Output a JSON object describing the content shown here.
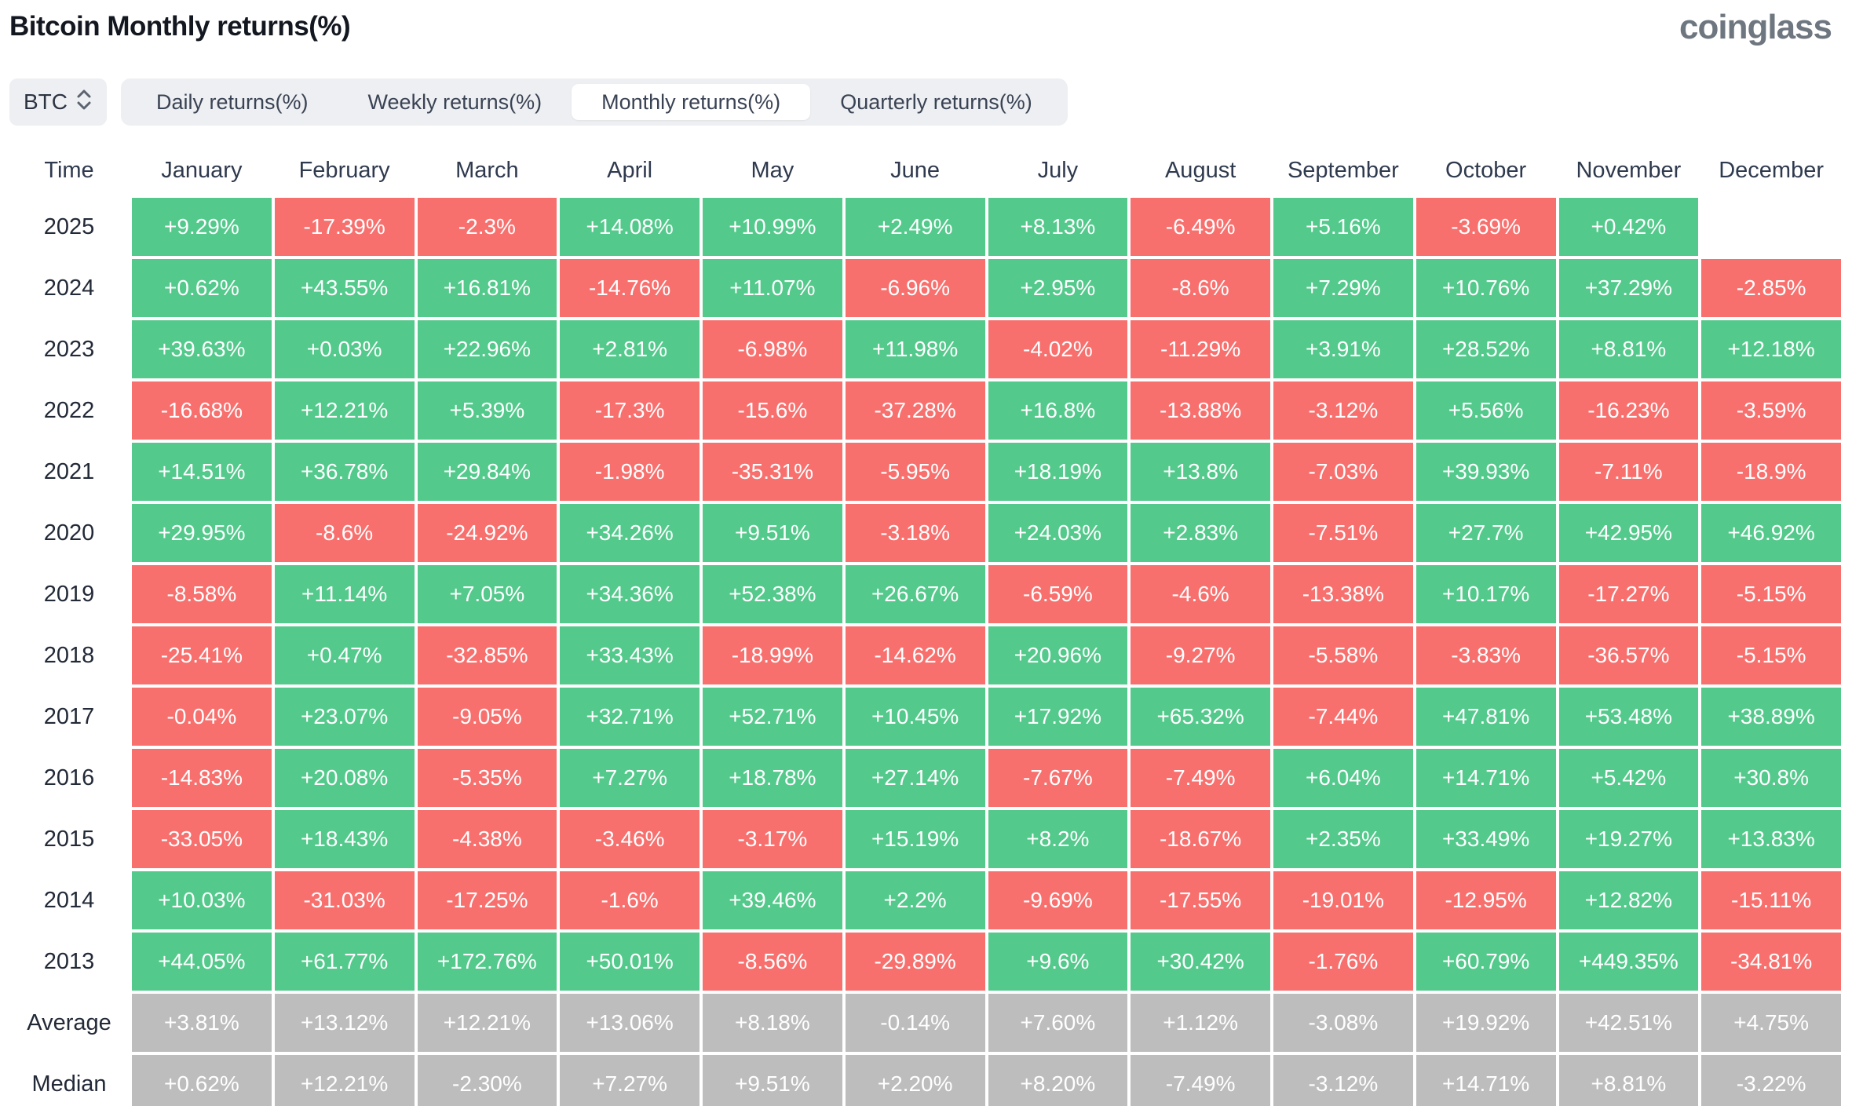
{
  "page": {
    "title": "Bitcoin Monthly returns(%)",
    "brand": "coinglass"
  },
  "controls": {
    "symbol_select": {
      "value": "BTC"
    },
    "tabs": [
      {
        "label": "Daily returns(%)",
        "active": false
      },
      {
        "label": "Weekly returns(%)",
        "active": false
      },
      {
        "label": "Monthly returns(%)",
        "active": true
      },
      {
        "label": "Quarterly returns(%)",
        "active": false
      }
    ]
  },
  "colors": {
    "positive": "#53c98b",
    "negative": "#f7706e",
    "summary": "#bdbdbd"
  },
  "table": {
    "columns": [
      "Time",
      "January",
      "February",
      "March",
      "April",
      "May",
      "June",
      "July",
      "August",
      "September",
      "October",
      "November",
      "December"
    ],
    "rows": [
      {
        "label": "2025",
        "type": "year",
        "values": [
          "+9.29%",
          "-17.39%",
          "-2.3%",
          "+14.08%",
          "+10.99%",
          "+2.49%",
          "+8.13%",
          "-6.49%",
          "+5.16%",
          "-3.69%",
          "+0.42%",
          ""
        ]
      },
      {
        "label": "2024",
        "type": "year",
        "values": [
          "+0.62%",
          "+43.55%",
          "+16.81%",
          "-14.76%",
          "+11.07%",
          "-6.96%",
          "+2.95%",
          "-8.6%",
          "+7.29%",
          "+10.76%",
          "+37.29%",
          "-2.85%"
        ]
      },
      {
        "label": "2023",
        "type": "year",
        "values": [
          "+39.63%",
          "+0.03%",
          "+22.96%",
          "+2.81%",
          "-6.98%",
          "+11.98%",
          "-4.02%",
          "-11.29%",
          "+3.91%",
          "+28.52%",
          "+8.81%",
          "+12.18%"
        ]
      },
      {
        "label": "2022",
        "type": "year",
        "values": [
          "-16.68%",
          "+12.21%",
          "+5.39%",
          "-17.3%",
          "-15.6%",
          "-37.28%",
          "+16.8%",
          "-13.88%",
          "-3.12%",
          "+5.56%",
          "-16.23%",
          "-3.59%"
        ]
      },
      {
        "label": "2021",
        "type": "year",
        "values": [
          "+14.51%",
          "+36.78%",
          "+29.84%",
          "-1.98%",
          "-35.31%",
          "-5.95%",
          "+18.19%",
          "+13.8%",
          "-7.03%",
          "+39.93%",
          "-7.11%",
          "-18.9%"
        ]
      },
      {
        "label": "2020",
        "type": "year",
        "values": [
          "+29.95%",
          "-8.6%",
          "-24.92%",
          "+34.26%",
          "+9.51%",
          "-3.18%",
          "+24.03%",
          "+2.83%",
          "-7.51%",
          "+27.7%",
          "+42.95%",
          "+46.92%"
        ]
      },
      {
        "label": "2019",
        "type": "year",
        "values": [
          "-8.58%",
          "+11.14%",
          "+7.05%",
          "+34.36%",
          "+52.38%",
          "+26.67%",
          "-6.59%",
          "-4.6%",
          "-13.38%",
          "+10.17%",
          "-17.27%",
          "-5.15%"
        ]
      },
      {
        "label": "2018",
        "type": "year",
        "values": [
          "-25.41%",
          "+0.47%",
          "-32.85%",
          "+33.43%",
          "-18.99%",
          "-14.62%",
          "+20.96%",
          "-9.27%",
          "-5.58%",
          "-3.83%",
          "-36.57%",
          "-5.15%"
        ]
      },
      {
        "label": "2017",
        "type": "year",
        "values": [
          "-0.04%",
          "+23.07%",
          "-9.05%",
          "+32.71%",
          "+52.71%",
          "+10.45%",
          "+17.92%",
          "+65.32%",
          "-7.44%",
          "+47.81%",
          "+53.48%",
          "+38.89%"
        ]
      },
      {
        "label": "2016",
        "type": "year",
        "values": [
          "-14.83%",
          "+20.08%",
          "-5.35%",
          "+7.27%",
          "+18.78%",
          "+27.14%",
          "-7.67%",
          "-7.49%",
          "+6.04%",
          "+14.71%",
          "+5.42%",
          "+30.8%"
        ]
      },
      {
        "label": "2015",
        "type": "year",
        "values": [
          "-33.05%",
          "+18.43%",
          "-4.38%",
          "-3.46%",
          "-3.17%",
          "+15.19%",
          "+8.2%",
          "-18.67%",
          "+2.35%",
          "+33.49%",
          "+19.27%",
          "+13.83%"
        ]
      },
      {
        "label": "2014",
        "type": "year",
        "values": [
          "+10.03%",
          "-31.03%",
          "-17.25%",
          "-1.6%",
          "+39.46%",
          "+2.2%",
          "-9.69%",
          "-17.55%",
          "-19.01%",
          "-12.95%",
          "+12.82%",
          "-15.11%"
        ]
      },
      {
        "label": "2013",
        "type": "year",
        "values": [
          "+44.05%",
          "+61.77%",
          "+172.76%",
          "+50.01%",
          "-8.56%",
          "-29.89%",
          "+9.6%",
          "+30.42%",
          "-1.76%",
          "+60.79%",
          "+449.35%",
          "-34.81%"
        ]
      },
      {
        "label": "Average",
        "type": "summary",
        "values": [
          "+3.81%",
          "+13.12%",
          "+12.21%",
          "+13.06%",
          "+8.18%",
          "-0.14%",
          "+7.60%",
          "+1.12%",
          "-3.08%",
          "+19.92%",
          "+42.51%",
          "+4.75%"
        ]
      },
      {
        "label": "Median",
        "type": "summary",
        "values": [
          "+0.62%",
          "+12.21%",
          "-2.30%",
          "+7.27%",
          "+9.51%",
          "+2.20%",
          "+8.20%",
          "-7.49%",
          "-3.12%",
          "+14.71%",
          "+8.81%",
          "-3.22%"
        ]
      }
    ]
  }
}
